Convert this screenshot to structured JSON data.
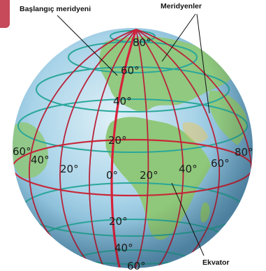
{
  "labels": {
    "prime_meridian": "Başlangıç meridyeni",
    "meridians": "Meridyenler",
    "equator": "Ekvator"
  },
  "latitude_labels": [
    "80°",
    "60°",
    "40°",
    "20°",
    "20°",
    "40°",
    "60°"
  ],
  "longitude_labels": [
    "60°",
    "40°",
    "20°",
    "0°",
    "20°",
    "40°",
    "60°",
    "80°"
  ],
  "colors": {
    "ocean": "#a8d3e8",
    "ocean_dark": "#6fa9c9",
    "land": "#8fc87a",
    "meridian": "#b8233a",
    "prime_meridian": "#d8203a",
    "parallel": "#2aa79b",
    "equator": "#c8283a",
    "accent_tab": "#c64a5a"
  }
}
